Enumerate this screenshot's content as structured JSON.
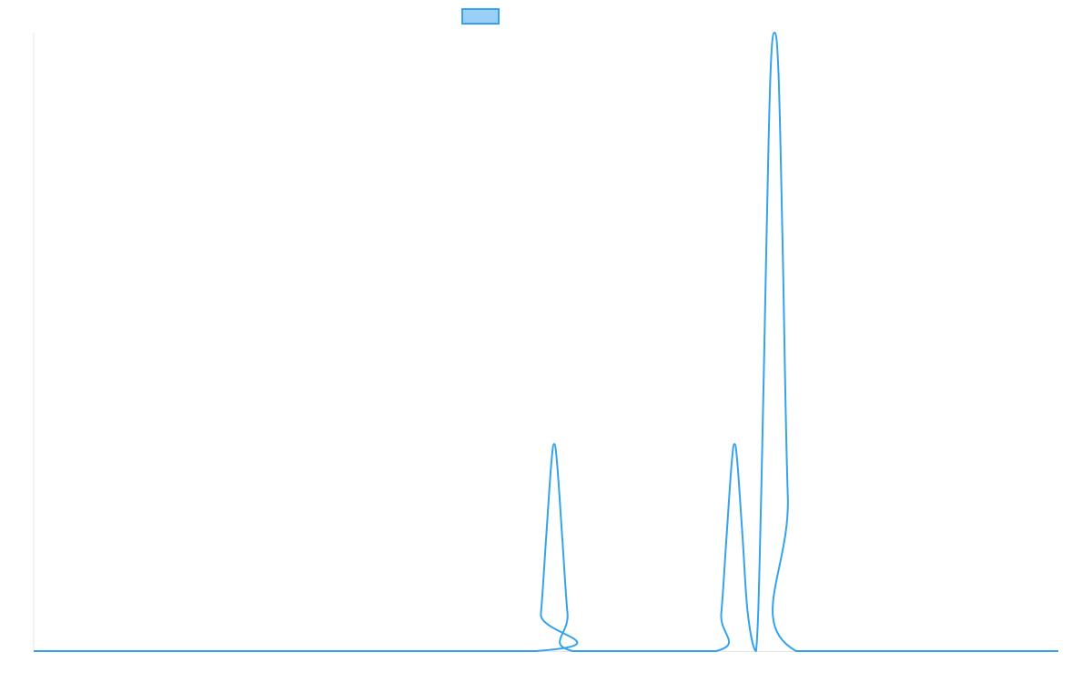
{
  "chart_data": {
    "type": "line",
    "title": "",
    "xlabel": "",
    "ylabel": "",
    "grid": false,
    "legend": {
      "position": "top-center",
      "entries": [
        {
          "label": "",
          "color": "#36a2eb",
          "fill": "#9ad0f5"
        }
      ]
    },
    "xlim": [
      0,
      1
    ],
    "ylim": [
      0,
      1
    ],
    "series": [
      {
        "color": "#36a2eb",
        "points": [
          [
            0.0,
            0.0
          ],
          [
            0.49,
            0.0
          ],
          [
            0.495,
            0.06
          ],
          [
            0.5,
            0.18
          ],
          [
            0.505,
            0.3
          ],
          [
            0.508,
            0.335
          ],
          [
            0.511,
            0.3
          ],
          [
            0.516,
            0.18
          ],
          [
            0.521,
            0.06
          ],
          [
            0.526,
            0.0
          ],
          [
            0.666,
            0.0
          ],
          [
            0.671,
            0.06
          ],
          [
            0.676,
            0.18
          ],
          [
            0.681,
            0.3
          ],
          [
            0.684,
            0.335
          ],
          [
            0.687,
            0.3
          ],
          [
            0.692,
            0.18
          ],
          [
            0.697,
            0.06
          ],
          [
            0.705,
            0.0
          ],
          [
            0.71,
            0.25
          ],
          [
            0.715,
            0.65
          ],
          [
            0.719,
            0.93
          ],
          [
            0.723,
            1.0
          ],
          [
            0.727,
            0.93
          ],
          [
            0.731,
            0.65
          ],
          [
            0.736,
            0.25
          ],
          [
            0.744,
            0.0
          ],
          [
            1.0,
            0.0
          ]
        ]
      }
    ]
  }
}
